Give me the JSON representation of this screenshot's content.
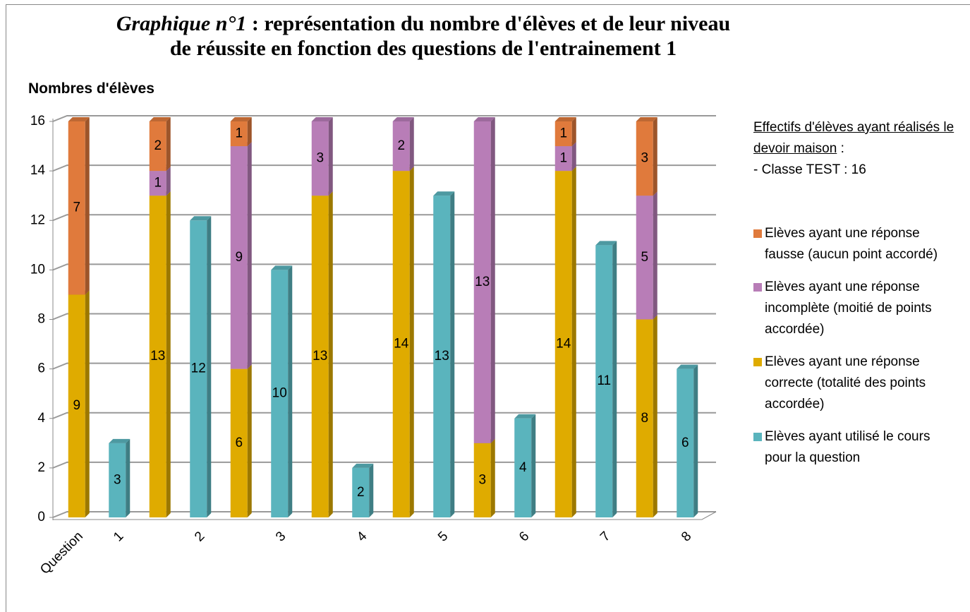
{
  "chart_data": {
    "type": "stacked-bar-3d",
    "title": {
      "emphasis": "Graphique n°1",
      "text": ":  représentation du nombre d'élèves et de leur niveau de réussite en fonction des questions de l'entrainement 1"
    },
    "y_label": "Nombres d'élèves",
    "annotation": {
      "heading": "Effectifs d'élèves ayant réalisés le devoir maison",
      "colon": ":",
      "line": "- Classe TEST : 16"
    },
    "categories": [
      "Question",
      "1",
      null,
      "2",
      null,
      "3",
      null,
      "4",
      null,
      "5",
      null,
      "6",
      null,
      "7",
      null,
      "8"
    ],
    "series": [
      {
        "name": "Elèves ayant utilisé le cours pour la question",
        "color": "#5ab4bd",
        "values": [
          null,
          3,
          null,
          12,
          null,
          10,
          null,
          2,
          null,
          13,
          null,
          4,
          null,
          11,
          null,
          6
        ]
      },
      {
        "name": "Elèves ayant une réponse correcte (totalité des points accordée)",
        "color": "#dfab00",
        "values": [
          9,
          null,
          13,
          null,
          6,
          null,
          13,
          null,
          14,
          null,
          3,
          null,
          14,
          null,
          8,
          null
        ]
      },
      {
        "name": "Elèves ayant une réponse incomplète (moitié de points accordée)",
        "color": "#b87db7",
        "values": [
          null,
          null,
          1,
          null,
          9,
          null,
          3,
          null,
          2,
          null,
          13,
          null,
          1,
          null,
          5,
          null
        ]
      },
      {
        "name": "Elèves ayant une réponse fausse (aucun point accordé)",
        "color": "#e07a3c",
        "values": [
          7,
          null,
          2,
          null,
          1,
          null,
          null,
          null,
          null,
          null,
          null,
          null,
          1,
          null,
          3,
          null
        ]
      }
    ],
    "ylim": [
      0,
      16
    ],
    "yticks": [
      0,
      2,
      4,
      6,
      8,
      10,
      12,
      14,
      16
    ],
    "grid": true,
    "legend": "right"
  }
}
